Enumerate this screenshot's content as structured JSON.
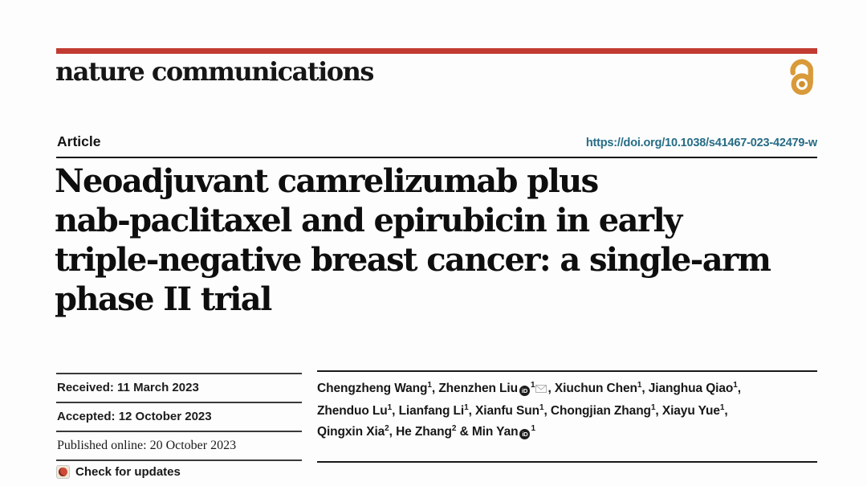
{
  "brand": {
    "journal": "nature communications"
  },
  "colors": {
    "brand_red": "#c23b32",
    "doi_link": "#266c86",
    "open_access_orange": "#d99a3a",
    "crossmark_red": "#cf4a38"
  },
  "article": {
    "type_label": "Article",
    "doi": "https://doi.org/10.1038/s41467-023-42479-w",
    "title_lines": [
      "Neoadjuvant camrelizumab plus",
      "nab-paclitaxel and epirubicin in early",
      "triple-negative breast cancer: a single-arm",
      "phase II trial"
    ]
  },
  "meta": {
    "rows": [
      {
        "label": "Received:",
        "value": "11 March 2023"
      },
      {
        "label": "Accepted:",
        "value": "12 October 2023"
      },
      {
        "label": "Published online:",
        "value": "20 October 2023"
      }
    ],
    "check_updates_label": "Check for updates"
  },
  "authors": {
    "orcid_icon_text": "iD",
    "list": [
      {
        "name": "Chengzheng Wang",
        "aff": "1"
      },
      {
        "name": "Zhenzhen Liu",
        "aff": "1",
        "orcid": true,
        "email": true
      },
      {
        "name": "Xiuchun Chen",
        "aff": "1"
      },
      {
        "name": "Jianghua Qiao",
        "aff": "1",
        "break_after": true
      },
      {
        "name": "Zhenduo Lu",
        "aff": "1"
      },
      {
        "name": "Lianfang Li",
        "aff": "1"
      },
      {
        "name": "Xianfu Sun",
        "aff": "1"
      },
      {
        "name": "Chongjian Zhang",
        "aff": "1"
      },
      {
        "name": "Xiayu Yue",
        "aff": "1",
        "break_after": true
      },
      {
        "name": "Qingxin Xia",
        "aff": "2"
      },
      {
        "name": "He Zhang",
        "aff": "2"
      },
      {
        "name": "Min Yan",
        "aff": "1",
        "orcid": true
      }
    ]
  }
}
